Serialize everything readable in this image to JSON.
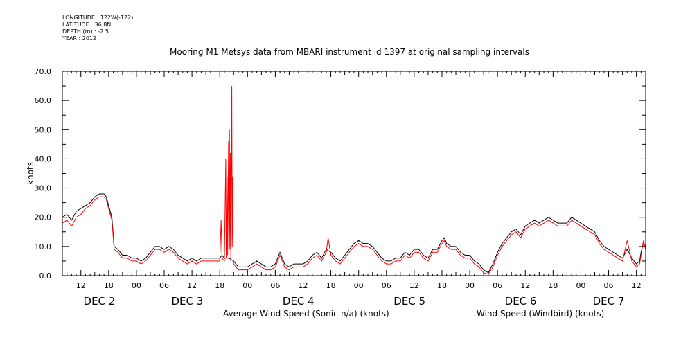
{
  "meta": {
    "longitude": "LONGITUDE : 122W(-122)",
    "latitude": "LATITUDE : 36.8N",
    "depth": "DEPTH (m) : -2.5",
    "year": "YEAR : 2012"
  },
  "chart_data": {
    "type": "line",
    "title": "Mooring M1 Metsys data from MBARI instrument id 1397 at original sampling intervals",
    "xlabel": "",
    "ylabel": "knots",
    "ylim": [
      0,
      70
    ],
    "yticks": [
      0,
      10,
      20,
      30,
      40,
      50,
      60,
      70
    ],
    "xlim_hours_since_dec2_00": [
      8,
      134
    ],
    "x_units": "hours since DEC 2 00:00 (2012)",
    "hour_tick_labels": [
      {
        "x": 12,
        "label": "12"
      },
      {
        "x": 18,
        "label": "18"
      },
      {
        "x": 24,
        "label": "00"
      },
      {
        "x": 30,
        "label": "06"
      },
      {
        "x": 36,
        "label": "12"
      },
      {
        "x": 42,
        "label": "18"
      },
      {
        "x": 48,
        "label": "00"
      },
      {
        "x": 54,
        "label": "06"
      },
      {
        "x": 60,
        "label": "12"
      },
      {
        "x": 66,
        "label": "18"
      },
      {
        "x": 72,
        "label": "00"
      },
      {
        "x": 78,
        "label": "06"
      },
      {
        "x": 84,
        "label": "12"
      },
      {
        "x": 90,
        "label": "18"
      },
      {
        "x": 96,
        "label": "00"
      },
      {
        "x": 102,
        "label": "06"
      },
      {
        "x": 108,
        "label": "12"
      },
      {
        "x": 114,
        "label": "18"
      },
      {
        "x": 120,
        "label": "00"
      },
      {
        "x": 126,
        "label": "06"
      },
      {
        "x": 132,
        "label": "12"
      }
    ],
    "day_labels": [
      {
        "x": 16,
        "label": "DEC  2"
      },
      {
        "x": 35,
        "label": "DEC  3"
      },
      {
        "x": 59,
        "label": "DEC  4"
      },
      {
        "x": 83,
        "label": "DEC  5"
      },
      {
        "x": 107,
        "label": "DEC  6"
      },
      {
        "x": 126,
        "label": "DEC  7"
      }
    ],
    "grid": false,
    "legend_position": "bottom",
    "series": [
      {
        "name": "Average Wind Speed (Sonic-n/a) (knots)",
        "color": "#000000",
        "points": [
          [
            8,
            20
          ],
          [
            9,
            21
          ],
          [
            10,
            19
          ],
          [
            11,
            22
          ],
          [
            12,
            23
          ],
          [
            13,
            24
          ],
          [
            14,
            25
          ],
          [
            15,
            27
          ],
          [
            16,
            28
          ],
          [
            17,
            28
          ],
          [
            17.5,
            27
          ],
          [
            18,
            24
          ],
          [
            18.7,
            20
          ],
          [
            19.2,
            10
          ],
          [
            20,
            9
          ],
          [
            21,
            7
          ],
          [
            22,
            7
          ],
          [
            23,
            6
          ],
          [
            24,
            6
          ],
          [
            25,
            5
          ],
          [
            26,
            6
          ],
          [
            27,
            8
          ],
          [
            28,
            10
          ],
          [
            29,
            10
          ],
          [
            30,
            9
          ],
          [
            31,
            10
          ],
          [
            32,
            9
          ],
          [
            33,
            7
          ],
          [
            34,
            6
          ],
          [
            35,
            5
          ],
          [
            36,
            6
          ],
          [
            37,
            5
          ],
          [
            38,
            6
          ],
          [
            39,
            6
          ],
          [
            40,
            6
          ],
          [
            41,
            6
          ],
          [
            42,
            6
          ],
          [
            42.5,
            7
          ],
          [
            43,
            6
          ],
          [
            44,
            6
          ],
          [
            45,
            5
          ],
          [
            46,
            3
          ],
          [
            47,
            3
          ],
          [
            48,
            3
          ],
          [
            49,
            4
          ],
          [
            50,
            5
          ],
          [
            51,
            4
          ],
          [
            52,
            3
          ],
          [
            53,
            3
          ],
          [
            54,
            4
          ],
          [
            55,
            8
          ],
          [
            56,
            4
          ],
          [
            57,
            3
          ],
          [
            58,
            4
          ],
          [
            59,
            4
          ],
          [
            60,
            4
          ],
          [
            61,
            5
          ],
          [
            62,
            7
          ],
          [
            63,
            8
          ],
          [
            64,
            6
          ],
          [
            65,
            9
          ],
          [
            66,
            8
          ],
          [
            67,
            6
          ],
          [
            68,
            5
          ],
          [
            69,
            7
          ],
          [
            70,
            9
          ],
          [
            71,
            11
          ],
          [
            72,
            12
          ],
          [
            73,
            11
          ],
          [
            74,
            11
          ],
          [
            75,
            10
          ],
          [
            76,
            8
          ],
          [
            77,
            6
          ],
          [
            78,
            5
          ],
          [
            79,
            5
          ],
          [
            80,
            6
          ],
          [
            81,
            6
          ],
          [
            82,
            8
          ],
          [
            83,
            7
          ],
          [
            84,
            9
          ],
          [
            85,
            9
          ],
          [
            86,
            7
          ],
          [
            87,
            6
          ],
          [
            88,
            9
          ],
          [
            89,
            9
          ],
          [
            90,
            12
          ],
          [
            90.5,
            13
          ],
          [
            91,
            11
          ],
          [
            92,
            10
          ],
          [
            93,
            10
          ],
          [
            94,
            8
          ],
          [
            95,
            7
          ],
          [
            96,
            7
          ],
          [
            97,
            5
          ],
          [
            98,
            4
          ],
          [
            99,
            2
          ],
          [
            100,
            1
          ],
          [
            101,
            4
          ],
          [
            102,
            8
          ],
          [
            103,
            11
          ],
          [
            104,
            13
          ],
          [
            105,
            15
          ],
          [
            106,
            16
          ],
          [
            107,
            14
          ],
          [
            108,
            17
          ],
          [
            109,
            18
          ],
          [
            110,
            19
          ],
          [
            111,
            18
          ],
          [
            112,
            19
          ],
          [
            113,
            20
          ],
          [
            114,
            19
          ],
          [
            115,
            18
          ],
          [
            116,
            18
          ],
          [
            117,
            18
          ],
          [
            118,
            20
          ],
          [
            119,
            19
          ],
          [
            120,
            18
          ],
          [
            121,
            17
          ],
          [
            122,
            16
          ],
          [
            123,
            15
          ],
          [
            124,
            12
          ],
          [
            125,
            10
          ],
          [
            126,
            9
          ],
          [
            127,
            8
          ],
          [
            128,
            7
          ],
          [
            129,
            6
          ],
          [
            130,
            9
          ],
          [
            131,
            6
          ],
          [
            132,
            4
          ],
          [
            132.7,
            5
          ],
          [
            133,
            8
          ],
          [
            133.5,
            11
          ],
          [
            134,
            10
          ]
        ]
      },
      {
        "name": "Wind Speed (Windbird) (knots)",
        "color": "#ff0000",
        "points": [
          [
            8,
            18
          ],
          [
            9,
            19
          ],
          [
            10,
            17
          ],
          [
            11,
            20
          ],
          [
            12,
            21
          ],
          [
            13,
            23
          ],
          [
            14,
            24
          ],
          [
            15,
            26
          ],
          [
            16,
            27
          ],
          [
            17,
            27
          ],
          [
            17.5,
            26
          ],
          [
            18,
            23
          ],
          [
            18.7,
            19
          ],
          [
            19.2,
            9
          ],
          [
            20,
            8
          ],
          [
            21,
            6
          ],
          [
            22,
            6
          ],
          [
            23,
            5
          ],
          [
            24,
            5
          ],
          [
            25,
            4
          ],
          [
            26,
            5
          ],
          [
            27,
            7
          ],
          [
            28,
            9
          ],
          [
            29,
            9
          ],
          [
            30,
            8
          ],
          [
            31,
            9
          ],
          [
            32,
            8
          ],
          [
            33,
            6
          ],
          [
            34,
            5
          ],
          [
            35,
            4
          ],
          [
            36,
            5
          ],
          [
            37,
            4
          ],
          [
            38,
            5
          ],
          [
            39,
            5
          ],
          [
            40,
            5
          ],
          [
            41,
            5
          ],
          [
            42,
            5
          ],
          [
            42.3,
            19
          ],
          [
            42.5,
            6
          ],
          [
            43,
            5
          ],
          [
            43.3,
            40
          ],
          [
            43.4,
            6
          ],
          [
            43.6,
            34
          ],
          [
            43.7,
            7
          ],
          [
            43.9,
            46
          ],
          [
            44,
            8
          ],
          [
            44.1,
            50
          ],
          [
            44.2,
            9
          ],
          [
            44.3,
            42
          ],
          [
            44.4,
            5
          ],
          [
            44.6,
            65
          ],
          [
            44.7,
            10
          ],
          [
            44.8,
            34
          ],
          [
            44.9,
            5
          ],
          [
            45,
            4
          ],
          [
            46,
            2
          ],
          [
            47,
            2
          ],
          [
            48,
            2
          ],
          [
            49,
            3
          ],
          [
            50,
            4
          ],
          [
            51,
            3
          ],
          [
            52,
            2
          ],
          [
            53,
            2
          ],
          [
            54,
            3
          ],
          [
            55,
            7
          ],
          [
            56,
            3
          ],
          [
            57,
            2
          ],
          [
            58,
            3
          ],
          [
            59,
            3
          ],
          [
            60,
            3
          ],
          [
            61,
            4
          ],
          [
            62,
            6
          ],
          [
            63,
            7
          ],
          [
            64,
            5
          ],
          [
            65,
            8
          ],
          [
            65.4,
            13
          ],
          [
            66,
            7
          ],
          [
            67,
            5
          ],
          [
            68,
            4
          ],
          [
            69,
            6
          ],
          [
            70,
            8
          ],
          [
            71,
            10
          ],
          [
            72,
            11
          ],
          [
            73,
            10
          ],
          [
            74,
            10
          ],
          [
            75,
            9
          ],
          [
            76,
            7
          ],
          [
            77,
            5
          ],
          [
            78,
            4
          ],
          [
            79,
            4
          ],
          [
            80,
            5
          ],
          [
            81,
            5
          ],
          [
            82,
            7
          ],
          [
            83,
            6
          ],
          [
            84,
            8
          ],
          [
            85,
            8
          ],
          [
            86,
            6
          ],
          [
            87,
            5
          ],
          [
            88,
            8
          ],
          [
            89,
            8
          ],
          [
            90,
            11
          ],
          [
            90.5,
            12
          ],
          [
            91,
            10
          ],
          [
            92,
            9
          ],
          [
            93,
            9
          ],
          [
            94,
            7
          ],
          [
            95,
            6
          ],
          [
            96,
            6
          ],
          [
            97,
            4
          ],
          [
            98,
            3
          ],
          [
            99,
            1
          ],
          [
            100,
            0.5
          ],
          [
            101,
            3
          ],
          [
            102,
            7
          ],
          [
            103,
            10
          ],
          [
            104,
            12
          ],
          [
            105,
            14
          ],
          [
            106,
            15
          ],
          [
            107,
            13
          ],
          [
            108,
            16
          ],
          [
            109,
            17
          ],
          [
            110,
            18
          ],
          [
            111,
            17
          ],
          [
            112,
            18
          ],
          [
            113,
            19
          ],
          [
            114,
            18
          ],
          [
            115,
            17
          ],
          [
            116,
            17
          ],
          [
            117,
            17
          ],
          [
            118,
            19
          ],
          [
            119,
            18
          ],
          [
            120,
            17
          ],
          [
            121,
            16
          ],
          [
            122,
            15
          ],
          [
            123,
            14
          ],
          [
            124,
            11
          ],
          [
            125,
            9
          ],
          [
            126,
            8
          ],
          [
            127,
            7
          ],
          [
            128,
            6
          ],
          [
            129,
            5
          ],
          [
            130,
            12
          ],
          [
            131,
            5
          ],
          [
            132,
            3
          ],
          [
            132.7,
            4
          ],
          [
            133,
            7
          ],
          [
            133.5,
            12
          ],
          [
            134,
            9
          ]
        ]
      }
    ]
  }
}
